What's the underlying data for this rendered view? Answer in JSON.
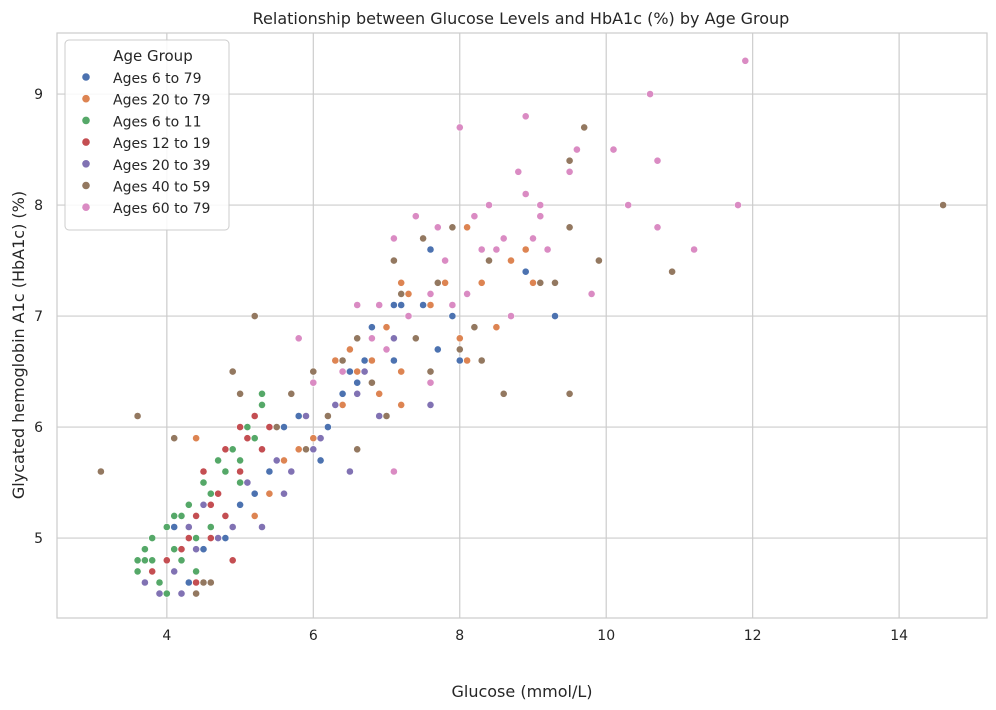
{
  "chart_data": {
    "type": "scatter",
    "title": "Relationship between Glucose Levels and HbA1c (%) by Age Group",
    "xlabel": "Glucose (mmol/L)",
    "ylabel": "Glycated hemoglobin A1c (HbA1c) (%)",
    "xlim": [
      2.5,
      15.2
    ],
    "ylim": [
      4.28,
      9.55
    ],
    "xticks": [
      4,
      6,
      8,
      10,
      12,
      14
    ],
    "yticks": [
      5,
      6,
      7,
      8,
      9
    ],
    "grid": true,
    "legend": {
      "title": "Age Group",
      "placement": "top-left"
    },
    "series": [
      {
        "name": "Ages 6 to 79",
        "color": "#4c72b0",
        "points": [
          [
            7.5,
            7.1
          ],
          [
            7.6,
            7.6
          ],
          [
            7.9,
            7.0
          ],
          [
            8.0,
            6.6
          ],
          [
            8.9,
            7.4
          ],
          [
            9.3,
            7.0
          ],
          [
            7.7,
            6.7
          ],
          [
            7.2,
            7.1
          ],
          [
            7.1,
            7.1
          ],
          [
            6.9,
            6.3
          ],
          [
            6.8,
            6.9
          ],
          [
            6.7,
            6.6
          ],
          [
            6.5,
            6.5
          ],
          [
            6.4,
            6.3
          ],
          [
            6.2,
            6.0
          ],
          [
            6.0,
            5.8
          ],
          [
            5.8,
            6.1
          ],
          [
            5.6,
            6.0
          ],
          [
            5.4,
            5.6
          ],
          [
            5.2,
            5.4
          ],
          [
            5.0,
            5.3
          ],
          [
            4.8,
            5.0
          ],
          [
            4.5,
            4.9
          ],
          [
            4.3,
            4.6
          ],
          [
            4.1,
            5.1
          ],
          [
            5.3,
            5.1
          ],
          [
            6.1,
            5.7
          ],
          [
            7.1,
            6.6
          ],
          [
            7.6,
            6.2
          ],
          [
            6.6,
            6.4
          ]
        ]
      },
      {
        "name": "Ages 20 to 79",
        "color": "#dd8452",
        "points": [
          [
            4.4,
            5.9
          ],
          [
            7.2,
            7.3
          ],
          [
            7.3,
            7.2
          ],
          [
            7.4,
            6.8
          ],
          [
            7.6,
            7.1
          ],
          [
            7.6,
            6.4
          ],
          [
            7.8,
            7.3
          ],
          [
            8.0,
            6.8
          ],
          [
            8.1,
            6.6
          ],
          [
            8.1,
            7.8
          ],
          [
            8.3,
            7.3
          ],
          [
            8.5,
            6.9
          ],
          [
            8.7,
            7.5
          ],
          [
            8.9,
            7.6
          ],
          [
            9.0,
            7.3
          ],
          [
            7.2,
            6.2
          ],
          [
            7.0,
            6.9
          ],
          [
            6.8,
            6.6
          ],
          [
            6.6,
            6.5
          ],
          [
            6.4,
            6.2
          ],
          [
            6.2,
            6.1
          ],
          [
            6.0,
            5.9
          ],
          [
            5.8,
            5.8
          ],
          [
            5.6,
            5.7
          ],
          [
            5.4,
            5.4
          ],
          [
            5.2,
            5.2
          ],
          [
            6.5,
            6.7
          ],
          [
            6.9,
            6.3
          ],
          [
            7.2,
            6.5
          ],
          [
            6.3,
            6.6
          ]
        ]
      },
      {
        "name": "Ages 6 to 11",
        "color": "#55a868",
        "points": [
          [
            3.6,
            4.7
          ],
          [
            3.6,
            4.8
          ],
          [
            3.7,
            4.9
          ],
          [
            3.8,
            5.0
          ],
          [
            3.9,
            4.6
          ],
          [
            4.0,
            5.1
          ],
          [
            4.0,
            4.5
          ],
          [
            4.1,
            5.2
          ],
          [
            4.2,
            4.8
          ],
          [
            4.3,
            5.3
          ],
          [
            4.4,
            5.0
          ],
          [
            4.5,
            5.5
          ],
          [
            4.6,
            5.4
          ],
          [
            4.7,
            5.7
          ],
          [
            4.8,
            5.6
          ],
          [
            4.9,
            5.8
          ],
          [
            5.0,
            5.5
          ],
          [
            5.1,
            6.0
          ],
          [
            5.2,
            5.9
          ],
          [
            5.3,
            6.2
          ],
          [
            5.3,
            6.3
          ],
          [
            4.4,
            4.7
          ],
          [
            3.8,
            4.8
          ],
          [
            4.1,
            4.9
          ],
          [
            4.6,
            5.1
          ],
          [
            5.0,
            5.7
          ],
          [
            4.2,
            5.2
          ],
          [
            3.7,
            4.8
          ]
        ]
      },
      {
        "name": "Ages 12 to 19",
        "color": "#c44e52",
        "points": [
          [
            3.8,
            4.7
          ],
          [
            4.0,
            4.8
          ],
          [
            4.1,
            4.7
          ],
          [
            4.2,
            4.9
          ],
          [
            4.3,
            5.0
          ],
          [
            4.4,
            5.2
          ],
          [
            4.5,
            5.6
          ],
          [
            4.6,
            5.3
          ],
          [
            4.7,
            5.4
          ],
          [
            4.8,
            5.8
          ],
          [
            4.9,
            4.8
          ],
          [
            5.0,
            6.0
          ],
          [
            5.1,
            5.9
          ],
          [
            5.2,
            6.1
          ],
          [
            5.3,
            5.8
          ],
          [
            4.4,
            4.6
          ],
          [
            4.6,
            5.0
          ],
          [
            4.8,
            5.2
          ],
          [
            5.0,
            5.6
          ],
          [
            5.4,
            6.0
          ]
        ]
      },
      {
        "name": "Ages 20 to 39",
        "color": "#8172b3",
        "points": [
          [
            3.7,
            4.6
          ],
          [
            3.9,
            4.5
          ],
          [
            4.1,
            4.7
          ],
          [
            4.2,
            4.5
          ],
          [
            4.4,
            4.9
          ],
          [
            4.5,
            5.3
          ],
          [
            4.7,
            5.0
          ],
          [
            4.9,
            5.1
          ],
          [
            5.1,
            5.5
          ],
          [
            5.3,
            5.1
          ],
          [
            5.5,
            5.7
          ],
          [
            5.7,
            5.6
          ],
          [
            5.9,
            6.1
          ],
          [
            6.1,
            5.9
          ],
          [
            6.3,
            6.2
          ],
          [
            6.5,
            5.6
          ],
          [
            6.7,
            6.5
          ],
          [
            6.9,
            6.1
          ],
          [
            7.1,
            6.8
          ],
          [
            7.6,
            6.2
          ],
          [
            4.3,
            5.1
          ],
          [
            5.6,
            5.4
          ],
          [
            6.0,
            5.8
          ],
          [
            6.6,
            6.3
          ]
        ]
      },
      {
        "name": "Ages 40 to 59",
        "color": "#937860",
        "points": [
          [
            3.1,
            5.6
          ],
          [
            3.6,
            6.1
          ],
          [
            4.1,
            5.9
          ],
          [
            4.4,
            4.5
          ],
          [
            4.9,
            6.5
          ],
          [
            5.0,
            6.3
          ],
          [
            5.2,
            7.0
          ],
          [
            4.5,
            4.6
          ],
          [
            4.6,
            4.6
          ],
          [
            5.5,
            6.0
          ],
          [
            5.7,
            6.3
          ],
          [
            5.9,
            5.8
          ],
          [
            6.0,
            6.5
          ],
          [
            6.2,
            6.1
          ],
          [
            6.4,
            6.6
          ],
          [
            6.6,
            6.8
          ],
          [
            6.8,
            6.4
          ],
          [
            7.0,
            6.1
          ],
          [
            7.1,
            7.5
          ],
          [
            7.2,
            7.2
          ],
          [
            7.4,
            6.8
          ],
          [
            7.5,
            7.7
          ],
          [
            7.7,
            7.3
          ],
          [
            7.9,
            7.8
          ],
          [
            8.2,
            6.9
          ],
          [
            8.3,
            6.6
          ],
          [
            8.4,
            7.5
          ],
          [
            8.6,
            6.3
          ],
          [
            9.1,
            7.3
          ],
          [
            9.3,
            7.3
          ],
          [
            9.5,
            6.3
          ],
          [
            9.5,
            7.8
          ],
          [
            9.5,
            8.4
          ],
          [
            9.7,
            8.7
          ],
          [
            9.9,
            7.5
          ],
          [
            10.9,
            7.4
          ],
          [
            14.6,
            8.0
          ],
          [
            8.0,
            6.7
          ],
          [
            7.6,
            6.5
          ],
          [
            6.6,
            5.8
          ]
        ]
      },
      {
        "name": "Ages 60 to 79",
        "color": "#da8bc3",
        "points": [
          [
            5.8,
            6.8
          ],
          [
            6.0,
            6.4
          ],
          [
            6.4,
            6.5
          ],
          [
            6.6,
            7.1
          ],
          [
            6.8,
            6.8
          ],
          [
            7.0,
            6.7
          ],
          [
            7.1,
            7.7
          ],
          [
            7.1,
            5.6
          ],
          [
            7.3,
            7.0
          ],
          [
            7.4,
            7.9
          ],
          [
            7.6,
            7.2
          ],
          [
            7.7,
            7.8
          ],
          [
            7.8,
            7.5
          ],
          [
            7.9,
            7.1
          ],
          [
            8.0,
            8.7
          ],
          [
            8.1,
            7.2
          ],
          [
            8.2,
            7.9
          ],
          [
            8.3,
            7.6
          ],
          [
            8.4,
            8.0
          ],
          [
            8.5,
            7.6
          ],
          [
            8.6,
            7.7
          ],
          [
            8.8,
            8.3
          ],
          [
            8.9,
            8.8
          ],
          [
            8.9,
            8.1
          ],
          [
            9.0,
            7.7
          ],
          [
            9.1,
            7.9
          ],
          [
            9.1,
            8.0
          ],
          [
            9.2,
            7.6
          ],
          [
            9.5,
            8.3
          ],
          [
            9.6,
            8.5
          ],
          [
            9.8,
            7.2
          ],
          [
            10.1,
            8.5
          ],
          [
            10.3,
            8.0
          ],
          [
            10.6,
            9.0
          ],
          [
            10.7,
            8.4
          ],
          [
            10.7,
            7.8
          ],
          [
            11.2,
            7.6
          ],
          [
            11.8,
            8.0
          ],
          [
            11.9,
            9.3
          ],
          [
            7.6,
            6.4
          ],
          [
            8.7,
            7.0
          ],
          [
            6.9,
            7.1
          ]
        ]
      }
    ]
  }
}
